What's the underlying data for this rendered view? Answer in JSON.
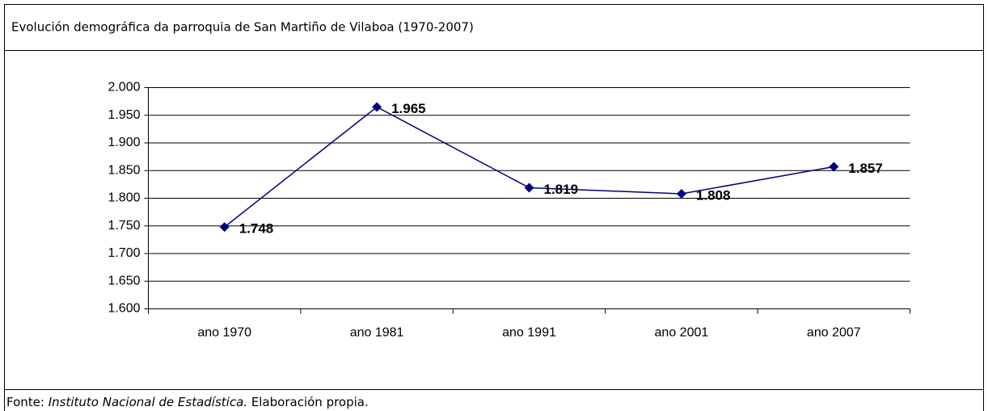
{
  "chart_data": {
    "type": "line",
    "title": "Evolución demográfica da parroquia de San Martiño de Vilaboa (1970-2007)",
    "categories": [
      "ano 1970",
      "ano 1981",
      "ano 1991",
      "ano 2001",
      "ano 2007"
    ],
    "series": [
      {
        "name": null,
        "color": "#000080",
        "values": [
          1748,
          1965,
          1819,
          1808,
          1857
        ],
        "value_labels": [
          "1.748",
          "1.965",
          "1.819",
          "1.808",
          "1.857"
        ]
      }
    ],
    "ylim": [
      1600,
      2000
    ],
    "yticks": [
      {
        "value": 1600,
        "label": "1.600"
      },
      {
        "value": 1650,
        "label": "1.650"
      },
      {
        "value": 1700,
        "label": "1.700"
      },
      {
        "value": 1750,
        "label": "1.750"
      },
      {
        "value": 1800,
        "label": "1.800"
      },
      {
        "value": 1850,
        "label": "1.850"
      },
      {
        "value": 1900,
        "label": "1.900"
      },
      {
        "value": 1950,
        "label": "1.950"
      },
      {
        "value": 2000,
        "label": "2.000"
      }
    ],
    "grid": true,
    "source": {
      "label": "Fonte:",
      "name": "Instituto Nacional de Estadística.",
      "note": "Elaboración propia."
    }
  }
}
